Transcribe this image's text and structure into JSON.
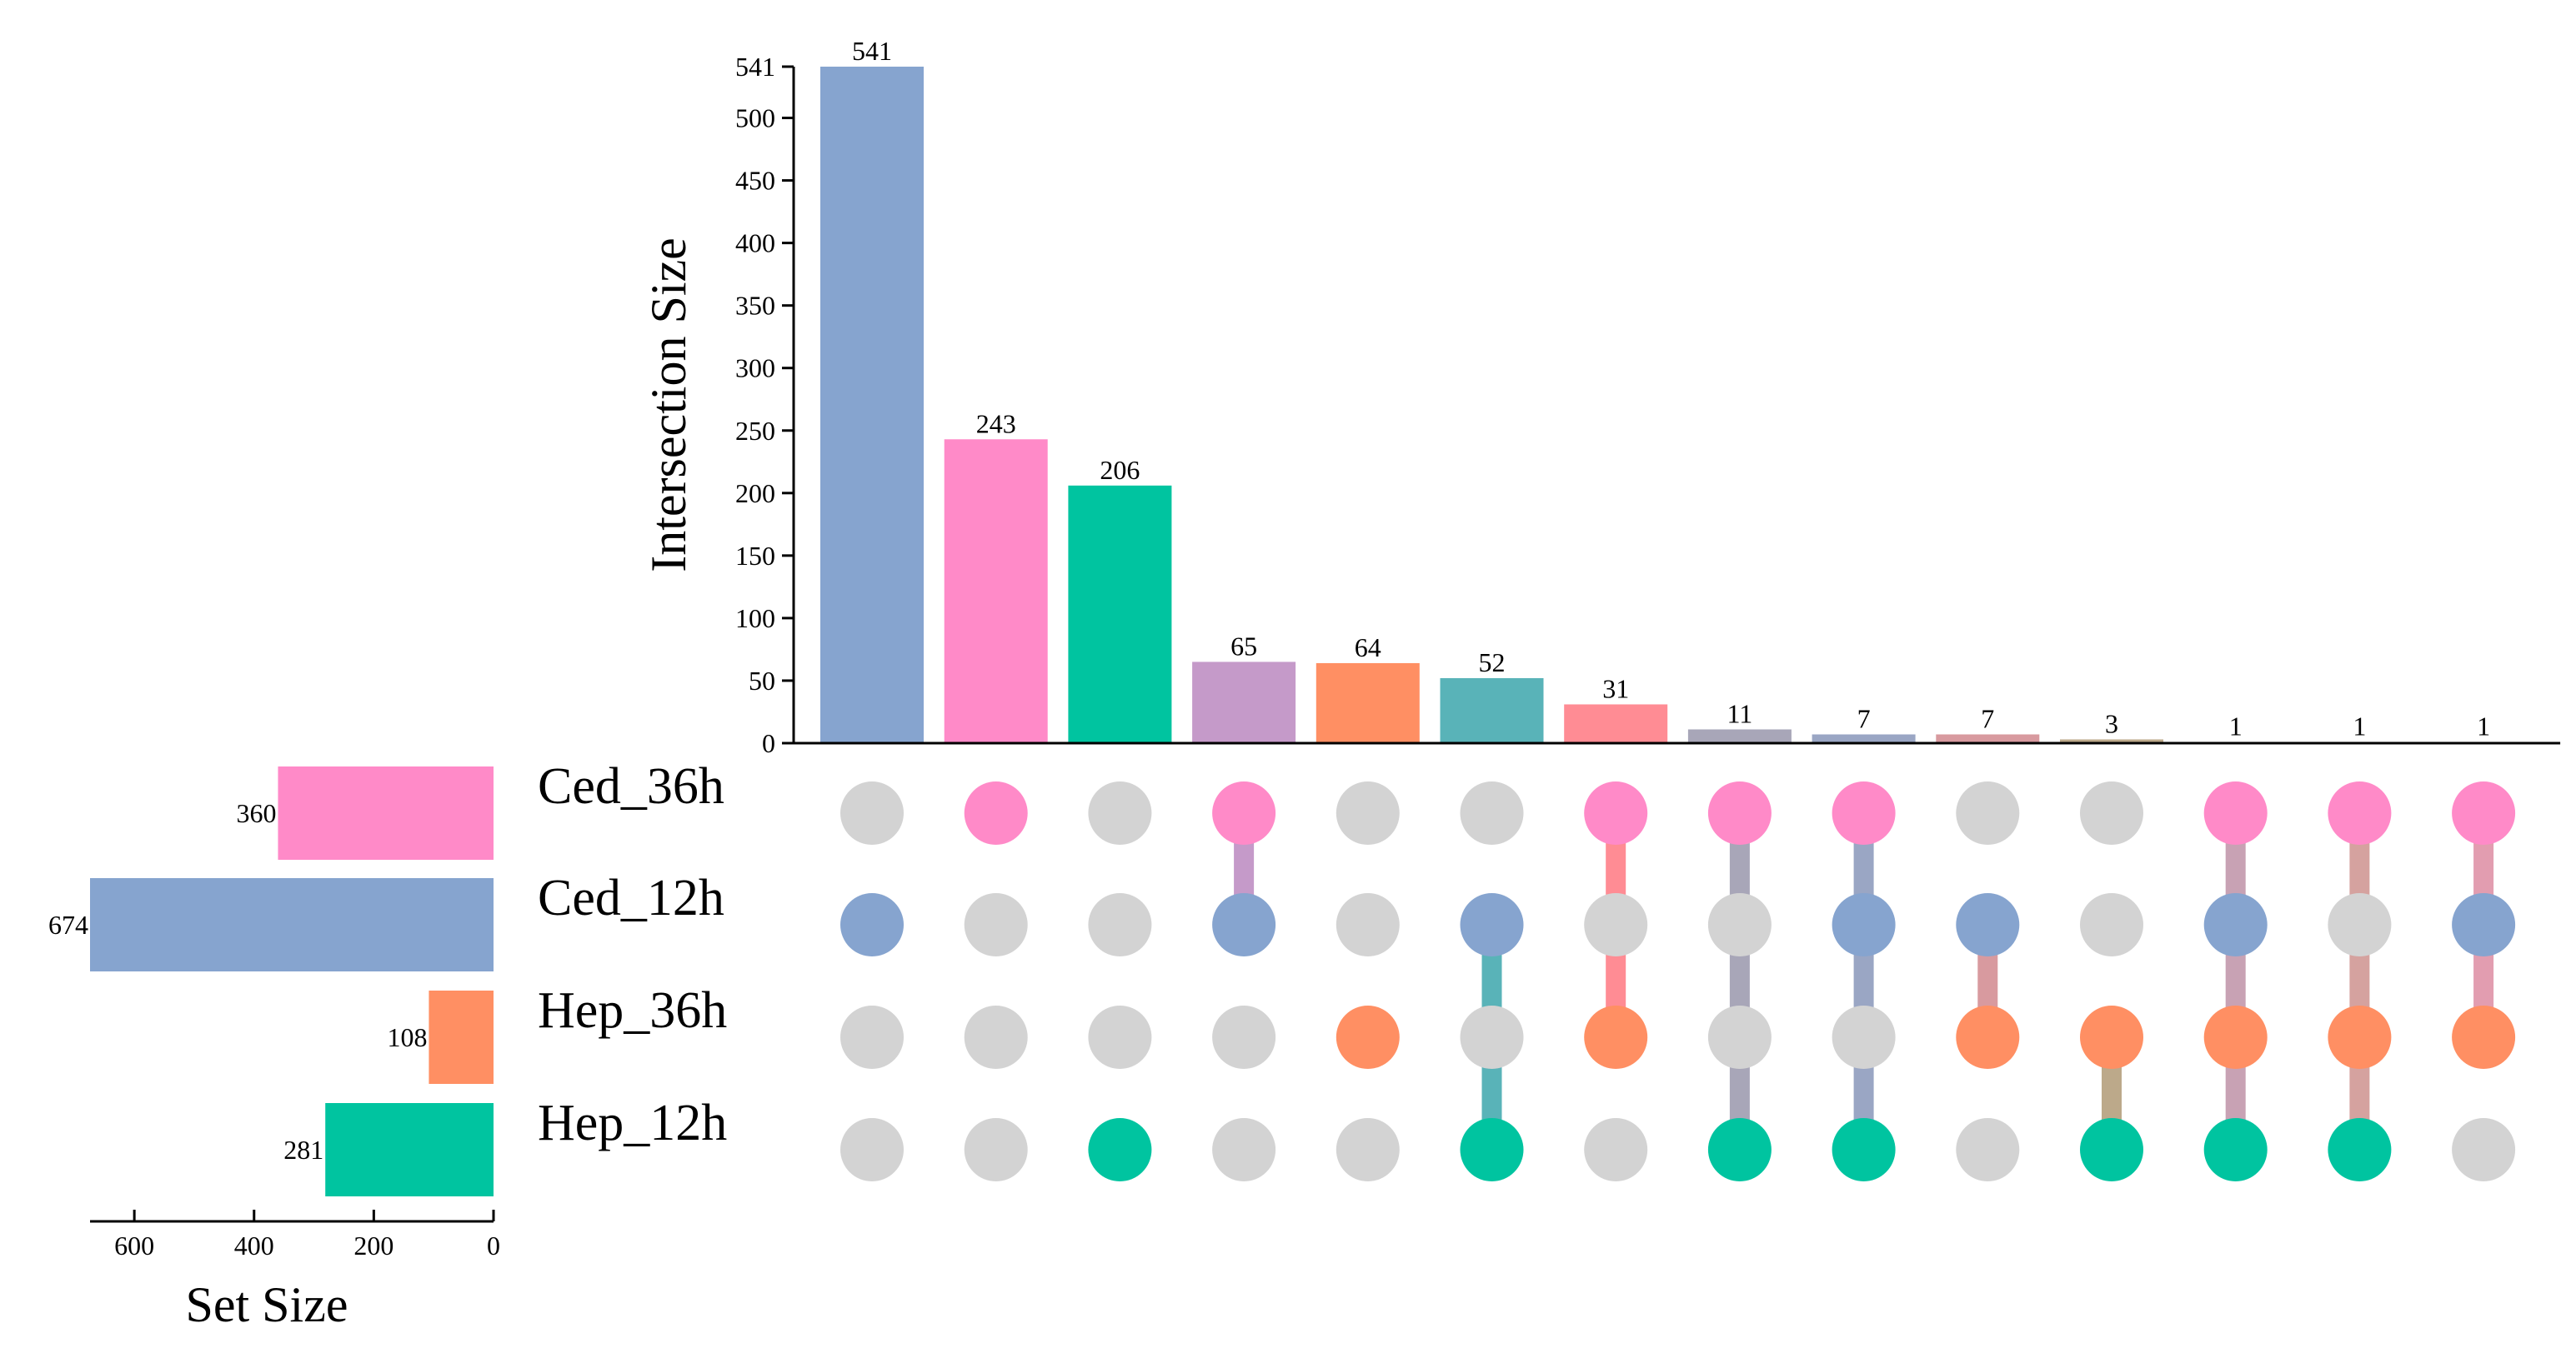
{
  "chart_data": {
    "type": "upset",
    "sets": [
      "Ced_36h",
      "Ced_12h",
      "Hep_36h",
      "Hep_12h"
    ],
    "set_sizes": [
      360,
      674,
      108,
      281
    ],
    "set_colors": [
      "#FF8AC8",
      "#86A4CF",
      "#FF8F63",
      "#00C4A0"
    ],
    "inactive_color": "#D3D3D3",
    "intersection_size_axis": {
      "title": "Intersection Size",
      "ylim": [
        0,
        541
      ],
      "ticks": [
        0,
        50,
        100,
        150,
        200,
        250,
        300,
        350,
        400,
        450,
        500,
        541
      ],
      "tick_labels": [
        "0",
        "50",
        "100",
        "150",
        "200",
        "250",
        "300",
        "350",
        "400",
        "450",
        "500",
        "541"
      ]
    },
    "set_size_axis": {
      "title": "Set Size",
      "xlim": [
        0,
        674
      ],
      "ticks": [
        600,
        400,
        200,
        0
      ],
      "tick_labels": [
        "600",
        "400",
        "200",
        "0"
      ]
    },
    "intersections": [
      {
        "value": 541,
        "label": "541",
        "sets": [
          1
        ],
        "color": "#86A4CF"
      },
      {
        "value": 243,
        "label": "243",
        "sets": [
          0
        ],
        "color": "#FF8AC8"
      },
      {
        "value": 206,
        "label": "206",
        "sets": [
          3
        ],
        "color": "#00C4A0"
      },
      {
        "value": 65,
        "label": "65",
        "sets": [
          0,
          1
        ],
        "color": "#C59AC9"
      },
      {
        "value": 64,
        "label": "64",
        "sets": [
          2
        ],
        "color": "#FF8F63"
      },
      {
        "value": 52,
        "label": "52",
        "sets": [
          1,
          3
        ],
        "color": "#59B3B8"
      },
      {
        "value": 31,
        "label": "31",
        "sets": [
          0,
          2
        ],
        "color": "#FF8C94"
      },
      {
        "value": 11,
        "label": "11",
        "sets": [
          0,
          3
        ],
        "color": "#A8A6B8"
      },
      {
        "value": 7,
        "label": "7",
        "sets": [
          0,
          1,
          3
        ],
        "color": "#9AA6C4"
      },
      {
        "value": 7,
        "label": "7",
        "sets": [
          1,
          2
        ],
        "color": "#D89A9F"
      },
      {
        "value": 3,
        "label": "3",
        "sets": [
          2,
          3
        ],
        "color": "#BCA98A"
      },
      {
        "value": 1,
        "label": "1",
        "sets": [
          0,
          1,
          2,
          3
        ],
        "color": "#C8A2B4"
      },
      {
        "value": 1,
        "label": "1",
        "sets": [
          0,
          2,
          3
        ],
        "color": "#D5A29F"
      },
      {
        "value": 1,
        "label": "1",
        "sets": [
          0,
          1,
          2
        ],
        "color": "#E29DB0"
      }
    ]
  }
}
